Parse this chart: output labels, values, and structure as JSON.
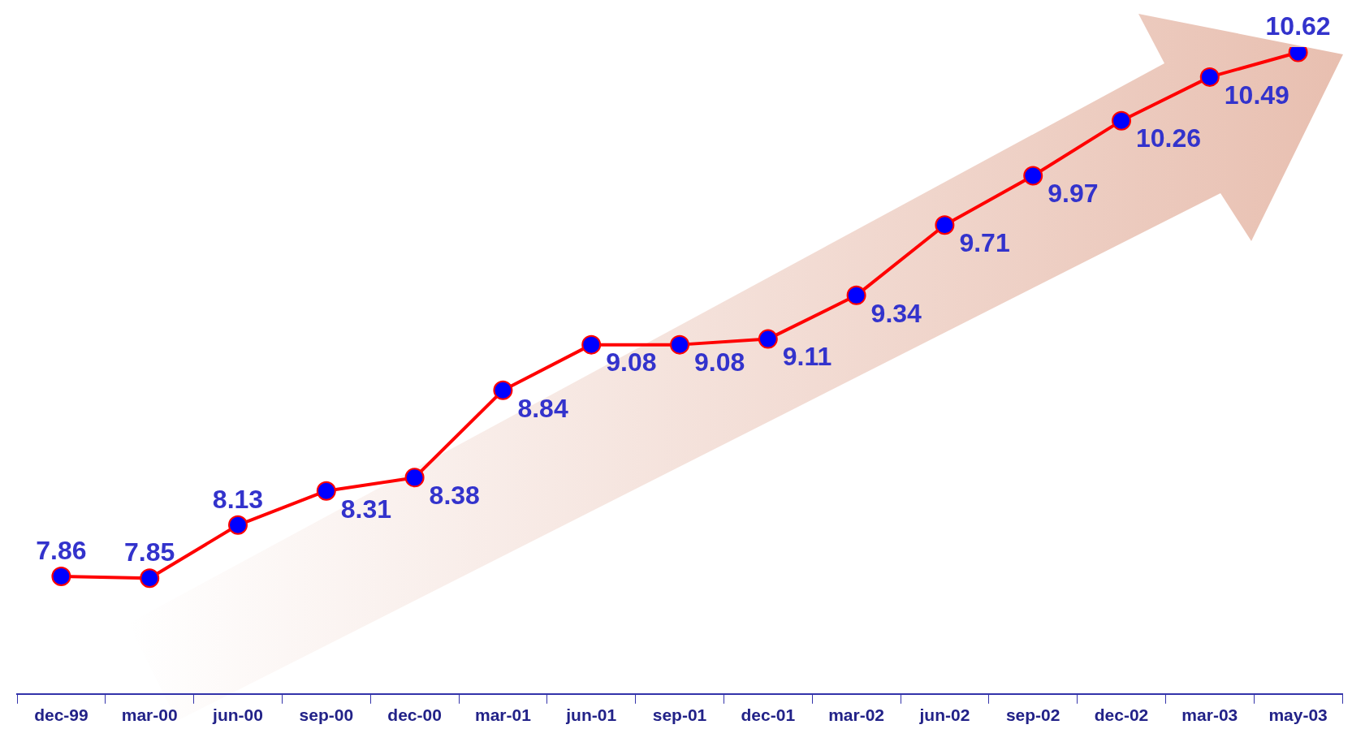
{
  "chart_data": {
    "type": "line",
    "categories": [
      "dec-99",
      "mar-00",
      "jun-00",
      "sep-00",
      "dec-00",
      "mar-01",
      "jun-01",
      "sep-01",
      "dec-01",
      "mar-02",
      "jun-02",
      "sep-02",
      "dec-02",
      "mar-03",
      "may-03"
    ],
    "series": [
      {
        "color": "#ff0000",
        "values": [
          7.86,
          7.85,
          8.13,
          8.31,
          8.38,
          8.84,
          9.08,
          9.08,
          9.11,
          9.34,
          9.71,
          9.97,
          10.26,
          10.49,
          10.62
        ]
      }
    ],
    "marker": "circle",
    "line_style": "solid",
    "data_labels": true,
    "grid": false,
    "legend": false,
    "tick_labels": "x"
  }
}
